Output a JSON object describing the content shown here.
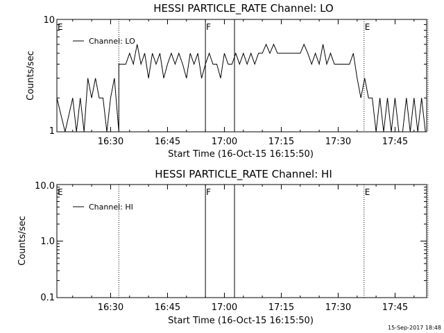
{
  "footer_timestamp": "15-Sep-2017 18:48",
  "chart_data": [
    {
      "type": "line",
      "title": "HESSI PARTICLE_RATE Channel: LO",
      "xlabel": "Start Time (16-Oct-15 16:15:50)",
      "ylabel": "Counts/sec",
      "yscale": "log",
      "ylim": [
        1,
        10
      ],
      "y_tick_labels": [
        "1",
        "10"
      ],
      "xlim_minutes_after_16:15:50": [
        0,
        97.5
      ],
      "x_tick_labels": [
        "16:30",
        "16:45",
        "17:00",
        "17:15",
        "17:30",
        "17:45"
      ],
      "legend": "Channel: LO",
      "legend_position": "top-left",
      "event_markers": [
        {
          "label": "E",
          "time": "16:15:50",
          "style": "dotted"
        },
        {
          "label": "",
          "time": "16:32:10",
          "style": "dotted"
        },
        {
          "label": "F",
          "time": "16:55:00",
          "style": "solid"
        },
        {
          "label": "",
          "time": "17:02:40",
          "style": "solid"
        },
        {
          "label": "E",
          "time": "17:36:50",
          "style": "dotted"
        },
        {
          "label": "",
          "time": "17:53:40",
          "style": "dotted"
        }
      ],
      "series": [
        {
          "name": "Channel: LO",
          "color": "#000000",
          "x": [
            "16:15:50",
            "16:18:00",
            "16:20:00",
            "16:21:00",
            "16:22:00",
            "16:23:00",
            "16:24:00",
            "16:25:00",
            "16:26:00",
            "16:27:00",
            "16:28:00",
            "16:29:00",
            "16:30:00",
            "16:31:00",
            "16:32:10",
            "16:32:10",
            "16:34:00",
            "16:35:00",
            "16:36:00",
            "16:37:00",
            "16:38:00",
            "16:39:00",
            "16:40:00",
            "16:41:00",
            "16:42:00",
            "16:43:00",
            "16:44:00",
            "16:45:00",
            "16:46:00",
            "16:47:00",
            "16:48:00",
            "16:49:00",
            "16:50:00",
            "16:51:00",
            "16:52:00",
            "16:53:00",
            "16:54:00",
            "16:55:00",
            "16:56:00",
            "16:57:00",
            "16:58:00",
            "16:59:00",
            "17:00:00",
            "17:01:00",
            "17:02:00",
            "17:03:00",
            "17:04:00",
            "17:05:00",
            "17:06:00",
            "17:07:00",
            "17:08:00",
            "17:09:00",
            "17:10:00",
            "17:11:00",
            "17:12:00",
            "17:13:00",
            "17:14:00",
            "17:15:00",
            "17:16:00",
            "17:17:00",
            "17:18:00",
            "17:19:00",
            "17:20:00",
            "17:21:00",
            "17:22:00",
            "17:23:00",
            "17:24:00",
            "17:25:00",
            "17:26:00",
            "17:27:00",
            "17:28:00",
            "17:29:00",
            "17:30:00",
            "17:31:00",
            "17:32:00",
            "17:33:00",
            "17:34:00",
            "17:35:00",
            "17:36:00",
            "17:37:00",
            "17:38:00",
            "17:39:00",
            "17:40:00",
            "17:41:00",
            "17:42:00",
            "17:43:00",
            "17:44:00",
            "17:45:00",
            "17:46:00",
            "17:47:00",
            "17:48:00",
            "17:49:00",
            "17:50:00",
            "17:51:00",
            "17:52:00",
            "17:53:00"
          ],
          "values": [
            2,
            1,
            2,
            1,
            2,
            1,
            3,
            2,
            3,
            2,
            2,
            1,
            2,
            3,
            1,
            4,
            4,
            5,
            4,
            6,
            4,
            5,
            3,
            5,
            4,
            5,
            3,
            4,
            5,
            4,
            5,
            4,
            3,
            5,
            4,
            5,
            3,
            4,
            5,
            4,
            4,
            3,
            5,
            4,
            4,
            5,
            4,
            5,
            4,
            5,
            4,
            5,
            5,
            6,
            5,
            6,
            5,
            5,
            5,
            5,
            5,
            5,
            5,
            6,
            5,
            4,
            5,
            4,
            6,
            4,
            5,
            4,
            4,
            4,
            4,
            4,
            5,
            3,
            2,
            3,
            2,
            2,
            1,
            2,
            1,
            2,
            1,
            2,
            1,
            1,
            2,
            1,
            2,
            1,
            2,
            1
          ]
        }
      ]
    },
    {
      "type": "line",
      "title": "HESSI PARTICLE_RATE Channel: HI",
      "xlabel": "Start Time (16-Oct-15 16:15:50)",
      "ylabel": "Counts/sec",
      "yscale": "log",
      "ylim": [
        0.1,
        10
      ],
      "y_tick_labels": [
        "0.1",
        "1.0",
        "10.0"
      ],
      "xlim_minutes_after_16:15:50": [
        0,
        97.5
      ],
      "x_tick_labels": [
        "16:30",
        "16:45",
        "17:00",
        "17:15",
        "17:30",
        "17:45"
      ],
      "legend": "Channel: HI",
      "legend_position": "top-left",
      "event_markers": [
        {
          "label": "E",
          "time": "16:15:50",
          "style": "dotted"
        },
        {
          "label": "",
          "time": "16:32:10",
          "style": "dotted"
        },
        {
          "label": "F",
          "time": "16:55:00",
          "style": "solid"
        },
        {
          "label": "",
          "time": "17:02:40",
          "style": "solid"
        },
        {
          "label": "E",
          "time": "17:36:50",
          "style": "dotted"
        },
        {
          "label": "",
          "time": "17:53:40",
          "style": "dotted"
        }
      ],
      "series": [
        {
          "name": "Channel: HI",
          "color": "#000000",
          "x": [],
          "values": []
        }
      ]
    }
  ]
}
